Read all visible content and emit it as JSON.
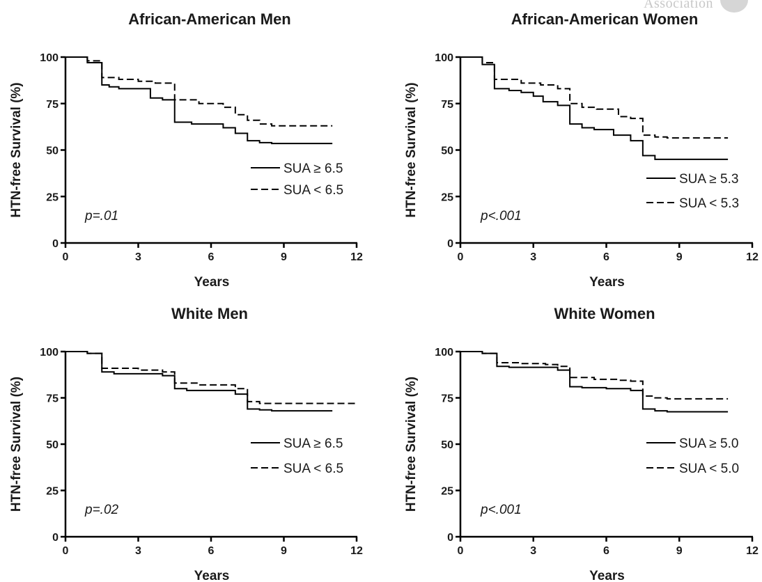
{
  "watermark": {
    "text": "Association"
  },
  "chart_data": [
    {
      "type": "line",
      "title": "African-American Men",
      "xlabel": "Years",
      "ylabel": "HTN-free Survival (%)",
      "xlim": [
        0,
        12
      ],
      "ylim": [
        0,
        100
      ],
      "xticks": [
        "0",
        "3",
        "6",
        "9",
        "12"
      ],
      "yticks": [
        "0",
        "25",
        "50",
        "75",
        "100"
      ],
      "annotation": "p=.01",
      "legend_position": "right-middle",
      "series": [
        {
          "name": "SUA ≥ 6.5",
          "style": "solid",
          "x": [
            0,
            0.9,
            1.0,
            1.5,
            1.8,
            2.2,
            3.5,
            4.0,
            4.5,
            5.2,
            6.5,
            7.0,
            7.5,
            8.0,
            8.5,
            9.0,
            11.0
          ],
          "y": [
            100,
            97,
            97,
            85,
            84,
            83,
            78,
            77,
            65,
            64,
            62,
            59,
            55,
            54,
            53.5,
            53.5,
            53.5
          ]
        },
        {
          "name": "SUA < 6.5",
          "style": "dashed",
          "x": [
            0,
            0.9,
            1.0,
            1.5,
            2.2,
            3.0,
            3.7,
            4.5,
            5.5,
            6.5,
            7.0,
            7.5,
            8.0,
            8.5,
            11.0
          ],
          "y": [
            100,
            98,
            98,
            89,
            88,
            87,
            86,
            77,
            75,
            73,
            69,
            66,
            64,
            63,
            63
          ]
        }
      ]
    },
    {
      "type": "line",
      "title": "African-American Women",
      "xlabel": "Years",
      "ylabel": "HTN-free Survival (%)",
      "xlim": [
        0,
        12
      ],
      "ylim": [
        0,
        100
      ],
      "xticks": [
        "0",
        "3",
        "6",
        "9",
        "12"
      ],
      "yticks": [
        "0",
        "25",
        "50",
        "75",
        "100"
      ],
      "annotation": "p<.001",
      "legend_position": "right-bottom",
      "series": [
        {
          "name": "SUA ≥ 5.3",
          "style": "solid",
          "x": [
            0,
            0.9,
            1.0,
            1.4,
            2.0,
            2.5,
            3.0,
            3.4,
            4.0,
            4.5,
            5.0,
            5.5,
            6.3,
            7.0,
            7.5,
            8.0,
            8.5,
            11.0
          ],
          "y": [
            100,
            96,
            96,
            83,
            82,
            81,
            79,
            76,
            74,
            64,
            62,
            61,
            58,
            55,
            47,
            45,
            45,
            45
          ]
        },
        {
          "name": "SUA < 5.3",
          "style": "dashed",
          "x": [
            0,
            0.9,
            1.0,
            1.4,
            2.5,
            3.3,
            4.0,
            4.5,
            5.0,
            5.6,
            6.5,
            7.0,
            7.5,
            8.0,
            8.5,
            11.0
          ],
          "y": [
            100,
            97,
            97,
            88,
            86,
            85,
            83,
            75,
            73,
            72,
            68,
            67,
            58,
            57,
            56.5,
            56.5
          ]
        }
      ]
    },
    {
      "type": "line",
      "title": "White Men",
      "xlabel": "Years",
      "ylabel": "HTN-free Survival (%)",
      "xlim": [
        0,
        12
      ],
      "ylim": [
        0,
        100
      ],
      "xticks": [
        "0",
        "3",
        "6",
        "9",
        "12"
      ],
      "yticks": [
        "0",
        "25",
        "50",
        "75",
        "100"
      ],
      "annotation": "p=.02",
      "legend_position": "right-middle",
      "series": [
        {
          "name": "SUA ≥ 6.5",
          "style": "solid",
          "x": [
            0,
            0.9,
            1.0,
            1.5,
            2.0,
            3.0,
            4.0,
            4.5,
            5.0,
            6.0,
            7.0,
            7.5,
            8.0,
            8.5,
            11.0
          ],
          "y": [
            100,
            99,
            99,
            89,
            88,
            88,
            87,
            80,
            79,
            79,
            77,
            69,
            68.5,
            68,
            68
          ]
        },
        {
          "name": "SUA < 6.5",
          "style": "dashed",
          "x": [
            0,
            0.9,
            1.0,
            1.5,
            3.0,
            4.0,
            4.5,
            5.5,
            7.0,
            7.5,
            8.0,
            8.5,
            12.0
          ],
          "y": [
            100,
            99,
            99,
            91,
            90,
            89,
            83,
            82,
            80,
            73,
            72,
            72,
            72
          ]
        }
      ]
    },
    {
      "type": "line",
      "title": "White Women",
      "xlabel": "Years",
      "ylabel": "HTN-free Survival (%)",
      "xlim": [
        0,
        12
      ],
      "ylim": [
        0,
        100
      ],
      "xticks": [
        "0",
        "3",
        "6",
        "9",
        "12"
      ],
      "yticks": [
        "0",
        "25",
        "50",
        "75",
        "100"
      ],
      "annotation": "p<.001",
      "legend_position": "right-middle",
      "series": [
        {
          "name": "SUA ≥ 5.0",
          "style": "solid",
          "x": [
            0,
            0.9,
            1.0,
            1.5,
            2.0,
            3.0,
            4.0,
            4.5,
            5.0,
            6.0,
            7.0,
            7.5,
            8.0,
            8.5,
            11.0
          ],
          "y": [
            100,
            99,
            99,
            92,
            91.5,
            91.5,
            90,
            81,
            80.5,
            80,
            79,
            69,
            68,
            67.5,
            67.5
          ]
        },
        {
          "name": "SUA < 5.0",
          "style": "dashed",
          "x": [
            0,
            0.9,
            1.0,
            1.5,
            2.5,
            3.5,
            4.0,
            4.5,
            5.5,
            6.5,
            7.0,
            7.5,
            8.0,
            8.5,
            11.0
          ],
          "y": [
            100,
            99,
            99,
            94,
            93.5,
            93,
            92,
            86,
            85,
            84.5,
            84,
            76,
            75,
            74.5,
            74.5
          ]
        }
      ]
    }
  ]
}
